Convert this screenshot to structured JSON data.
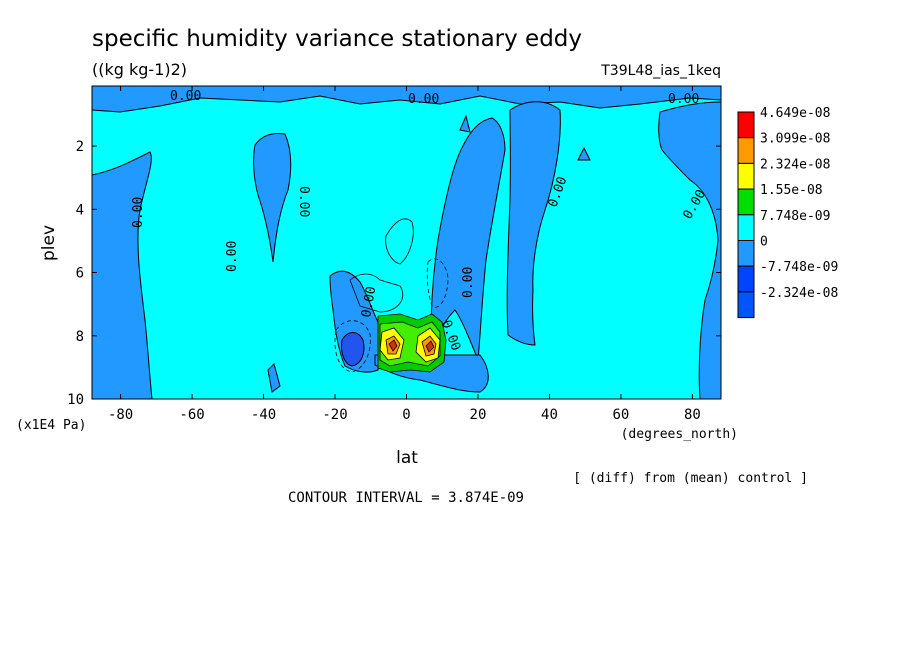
{
  "chart_data": {
    "type": "contour",
    "title": "specific humidity variance stationary eddy",
    "units": "((kg kg-1)2)",
    "run": "T39L48_ias_1keq",
    "xlabel": "lat",
    "xunits": "(degrees_north)",
    "ylabel": "plev",
    "yunits": "(x1E4 Pa)",
    "xlim": [
      -88,
      88
    ],
    "ylim": [
      0.1,
      10
    ],
    "x_ticks": [
      -80,
      -60,
      -40,
      -20,
      0,
      20,
      40,
      60,
      80
    ],
    "x_tick_labels": [
      "-80",
      "-60",
      "-40",
      "-20",
      "0",
      "20",
      "40",
      "60",
      "80"
    ],
    "y_ticks": [
      2,
      4,
      6,
      8,
      10
    ],
    "y_tick_labels": [
      "2",
      "4",
      "6",
      "8",
      "10"
    ],
    "y_inverted": true,
    "contour_interval_text": "CONTOUR INTERVAL = 3.874E-09",
    "note": "[ (diff) from (mean) control ]",
    "contour_labels": [
      "0.00",
      "0.00",
      "0.00",
      "0.00",
      "0.00",
      "0.00",
      "0.00",
      "0.00",
      "0.00",
      "0.00",
      "0.00"
    ],
    "legend": {
      "placement": "right",
      "levels": [
        "4.649e-08",
        "3.099e-08",
        "2.324e-08",
        "1.55e-08",
        "7.748e-09",
        "0",
        "-7.748e-09",
        "-2.324e-08"
      ],
      "colors": [
        "#ff0000",
        "#ff9900",
        "#ffff00",
        "#00dd00",
        "#00ffff",
        "#2299ff",
        "#0044ff",
        "#0055ff"
      ]
    },
    "colors": {
      "zero": "#00ffff",
      "neg1": "#2299ff",
      "neg2": "#2255ee",
      "pos1": "#00cc00",
      "pos2": "#44ee00",
      "pos3": "#ffff00",
      "pos4": "#ff9900",
      "pos5": "#cc3300"
    }
  }
}
